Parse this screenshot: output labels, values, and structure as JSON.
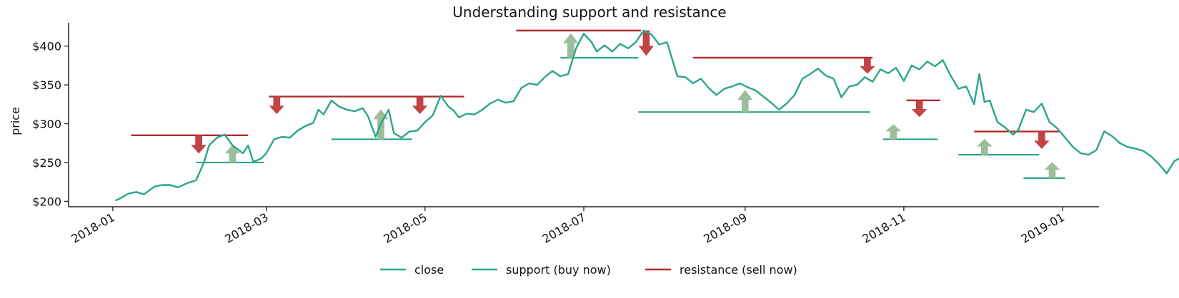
{
  "chart_data": {
    "type": "line",
    "title": "Understanding support and resistance",
    "xlabel": "",
    "ylabel": "price",
    "x_range": [
      "2017-12-15",
      "2019-01-15"
    ],
    "ylim": [
      193,
      430
    ],
    "y_ticks": [
      {
        "value": 200,
        "label": "$200"
      },
      {
        "value": 250,
        "label": "$250"
      },
      {
        "value": 300,
        "label": "$300"
      },
      {
        "value": 350,
        "label": "$350"
      },
      {
        "value": 400,
        "label": "$400"
      }
    ],
    "x_ticks": [
      {
        "date": "2018-01-01",
        "label": "2018-01"
      },
      {
        "date": "2018-03-01",
        "label": "2018-03"
      },
      {
        "date": "2018-05-01",
        "label": "2018-05"
      },
      {
        "date": "2018-07-01",
        "label": "2018-07"
      },
      {
        "date": "2018-09-01",
        "label": "2018-09"
      },
      {
        "date": "2018-11-01",
        "label": "2018-11"
      },
      {
        "date": "2019-01-01",
        "label": "2019-01"
      }
    ],
    "legend": {
      "position": "bottom-center"
    },
    "colors": {
      "close": "#2aa58a",
      "support": "#2aa58a",
      "resistance": "#b22c2c",
      "arrow_up": "#98b998",
      "arrow_down": "#c0393b"
    },
    "close": {
      "name": "close",
      "points": [
        [
          "2018-01-02",
          201
        ],
        [
          "2018-01-04",
          204
        ],
        [
          "2018-01-07",
          210
        ],
        [
          "2018-01-10",
          212
        ],
        [
          "2018-01-13",
          209
        ],
        [
          "2018-01-17",
          219
        ],
        [
          "2018-01-20",
          221
        ],
        [
          "2018-01-23",
          221
        ],
        [
          "2018-01-26",
          218
        ],
        [
          "2018-01-30",
          224
        ],
        [
          "2018-02-02",
          227
        ],
        [
          "2018-02-05",
          250
        ],
        [
          "2018-02-07",
          272
        ],
        [
          "2018-02-10",
          282
        ],
        [
          "2018-02-13",
          286
        ],
        [
          "2018-02-16",
          272
        ],
        [
          "2018-02-18",
          267
        ],
        [
          "2018-02-20",
          262
        ],
        [
          "2018-02-22",
          272
        ],
        [
          "2018-02-24",
          251
        ],
        [
          "2018-02-27",
          255
        ],
        [
          "2018-03-01",
          262
        ],
        [
          "2018-03-04",
          280
        ],
        [
          "2018-03-07",
          283
        ],
        [
          "2018-03-10",
          282
        ],
        [
          "2018-03-13",
          291
        ],
        [
          "2018-03-16",
          297
        ],
        [
          "2018-03-19",
          301
        ],
        [
          "2018-03-21",
          318
        ],
        [
          "2018-03-23",
          312
        ],
        [
          "2018-03-26",
          330
        ],
        [
          "2018-03-29",
          322
        ],
        [
          "2018-04-01",
          318
        ],
        [
          "2018-04-04",
          316
        ],
        [
          "2018-04-07",
          320
        ],
        [
          "2018-04-09",
          310
        ],
        [
          "2018-04-12",
          283
        ],
        [
          "2018-04-14",
          300
        ],
        [
          "2018-04-17",
          318
        ],
        [
          "2018-04-19",
          288
        ],
        [
          "2018-04-22",
          282
        ],
        [
          "2018-04-25",
          290
        ],
        [
          "2018-04-28",
          291
        ],
        [
          "2018-05-01",
          302
        ],
        [
          "2018-05-04",
          311
        ],
        [
          "2018-05-07",
          336
        ],
        [
          "2018-05-10",
          322
        ],
        [
          "2018-05-12",
          317
        ],
        [
          "2018-05-14",
          308
        ],
        [
          "2018-05-17",
          313
        ],
        [
          "2018-05-20",
          312
        ],
        [
          "2018-05-23",
          318
        ],
        [
          "2018-05-26",
          326
        ],
        [
          "2018-05-29",
          331
        ],
        [
          "2018-06-01",
          327
        ],
        [
          "2018-06-04",
          329
        ],
        [
          "2018-06-07",
          346
        ],
        [
          "2018-06-10",
          352
        ],
        [
          "2018-06-13",
          350
        ],
        [
          "2018-06-16",
          360
        ],
        [
          "2018-06-19",
          368
        ],
        [
          "2018-06-22",
          361
        ],
        [
          "2018-06-25",
          364
        ],
        [
          "2018-06-28",
          397
        ],
        [
          "2018-07-01",
          416
        ],
        [
          "2018-07-04",
          405
        ],
        [
          "2018-07-06",
          393
        ],
        [
          "2018-07-09",
          401
        ],
        [
          "2018-07-12",
          393
        ],
        [
          "2018-07-15",
          403
        ],
        [
          "2018-07-18",
          397
        ],
        [
          "2018-07-21",
          405
        ],
        [
          "2018-07-24",
          420
        ],
        [
          "2018-07-27",
          415
        ],
        [
          "2018-07-30",
          402
        ],
        [
          "2018-08-02",
          405
        ],
        [
          "2018-08-04",
          383
        ],
        [
          "2018-08-06",
          361
        ],
        [
          "2018-08-09",
          360
        ],
        [
          "2018-08-12",
          352
        ],
        [
          "2018-08-15",
          358
        ],
        [
          "2018-08-18",
          346
        ],
        [
          "2018-08-21",
          337
        ],
        [
          "2018-08-24",
          345
        ],
        [
          "2018-08-27",
          348
        ],
        [
          "2018-08-30",
          352
        ],
        [
          "2018-09-02",
          347
        ],
        [
          "2018-09-05",
          343
        ],
        [
          "2018-09-08",
          335
        ],
        [
          "2018-09-11",
          327
        ],
        [
          "2018-09-14",
          318
        ],
        [
          "2018-09-17",
          326
        ],
        [
          "2018-09-20",
          337
        ],
        [
          "2018-09-23",
          358
        ],
        [
          "2018-09-26",
          364
        ],
        [
          "2018-09-29",
          371
        ],
        [
          "2018-10-02",
          362
        ],
        [
          "2018-10-05",
          358
        ],
        [
          "2018-10-08",
          334
        ],
        [
          "2018-10-11",
          348
        ],
        [
          "2018-10-14",
          350
        ],
        [
          "2018-10-17",
          360
        ],
        [
          "2018-10-20",
          354
        ],
        [
          "2018-10-23",
          370
        ],
        [
          "2018-10-26",
          365
        ],
        [
          "2018-10-29",
          372
        ],
        [
          "2018-11-01",
          355
        ],
        [
          "2018-11-04",
          375
        ],
        [
          "2018-11-07",
          370
        ],
        [
          "2018-11-10",
          380
        ],
        [
          "2018-11-13",
          374
        ],
        [
          "2018-11-16",
          382
        ],
        [
          "2018-11-19",
          362
        ],
        [
          "2018-11-22",
          345
        ],
        [
          "2018-11-25",
          348
        ],
        [
          "2018-11-28",
          325
        ],
        [
          "2018-11-30",
          364
        ],
        [
          "2018-12-02",
          328
        ],
        [
          "2018-12-04",
          330
        ],
        [
          "2018-12-07",
          302
        ],
        [
          "2018-12-10",
          295
        ],
        [
          "2018-12-13",
          286
        ],
        [
          "2018-12-15",
          292
        ],
        [
          "2018-12-18",
          318
        ],
        [
          "2018-12-21",
          315
        ],
        [
          "2018-12-24",
          326
        ],
        [
          "2018-12-27",
          302
        ],
        [
          "2018-12-30",
          294
        ],
        [
          "2019-01-02",
          282
        ],
        [
          "2019-01-05",
          270
        ],
        [
          "2019-01-08",
          262
        ],
        [
          "2019-01-11",
          260
        ],
        [
          "2019-01-14",
          266
        ],
        [
          "2019-01-17",
          290
        ],
        [
          "2019-01-20",
          284
        ],
        [
          "2019-01-23",
          275
        ],
        [
          "2019-01-26",
          270
        ],
        [
          "2019-01-29",
          268
        ],
        [
          "2019-02-01",
          265
        ],
        [
          "2019-02-04",
          258
        ],
        [
          "2019-02-07",
          248
        ],
        [
          "2019-02-10",
          236
        ],
        [
          "2019-02-13",
          252
        ],
        [
          "2019-02-16",
          257
        ],
        [
          "2019-02-19",
          263
        ],
        [
          "2019-02-22",
          268
        ]
      ]
    },
    "support": {
      "name": "support (buy now)",
      "lines": [
        {
          "start": "2018-02-02",
          "end": "2018-02-28",
          "value": 250
        },
        {
          "start": "2018-03-26",
          "end": "2018-04-26",
          "value": 280
        },
        {
          "start": "2018-06-22",
          "end": "2018-07-22",
          "value": 385
        },
        {
          "start": "2018-07-22",
          "end": "2018-10-19",
          "value": 315
        },
        {
          "start": "2018-10-24",
          "end": "2018-11-14",
          "value": 280
        },
        {
          "start": "2018-11-22",
          "end": "2018-12-23",
          "value": 260
        },
        {
          "start": "2018-12-17",
          "end": "2019-01-02",
          "value": 230
        }
      ]
    },
    "resistance": {
      "name": "resistance (sell now)",
      "lines": [
        {
          "start": "2018-01-08",
          "end": "2018-02-22",
          "value": 285
        },
        {
          "start": "2018-03-02",
          "end": "2018-05-16",
          "value": 335
        },
        {
          "start": "2018-06-05",
          "end": "2018-07-23",
          "value": 420
        },
        {
          "start": "2018-08-12",
          "end": "2018-10-20",
          "value": 385
        },
        {
          "start": "2018-11-02",
          "end": "2018-11-15",
          "value": 330
        },
        {
          "start": "2018-11-28",
          "end": "2018-12-31",
          "value": 290
        }
      ]
    },
    "arrows_up": [
      {
        "date": "2018-02-16",
        "from": 250,
        "to": 272
      },
      {
        "date": "2018-04-14",
        "from": 280,
        "to": 318
      },
      {
        "date": "2018-06-26",
        "from": 385,
        "to": 416
      },
      {
        "date": "2018-09-01",
        "from": 315,
        "to": 343
      },
      {
        "date": "2018-10-28",
        "from": 280,
        "to": 299
      },
      {
        "date": "2018-12-02",
        "from": 260,
        "to": 280
      },
      {
        "date": "2018-12-28",
        "from": 230,
        "to": 250
      }
    ],
    "arrows_down": [
      {
        "date": "2018-02-03",
        "from": 285,
        "to": 262
      },
      {
        "date": "2018-03-05",
        "from": 335,
        "to": 313
      },
      {
        "date": "2018-04-29",
        "from": 335,
        "to": 313
      },
      {
        "date": "2018-07-25",
        "from": 420,
        "to": 388
      },
      {
        "date": "2018-10-18",
        "from": 385,
        "to": 365
      },
      {
        "date": "2018-11-07",
        "from": 330,
        "to": 309
      },
      {
        "date": "2018-12-24",
        "from": 290,
        "to": 268
      }
    ]
  }
}
